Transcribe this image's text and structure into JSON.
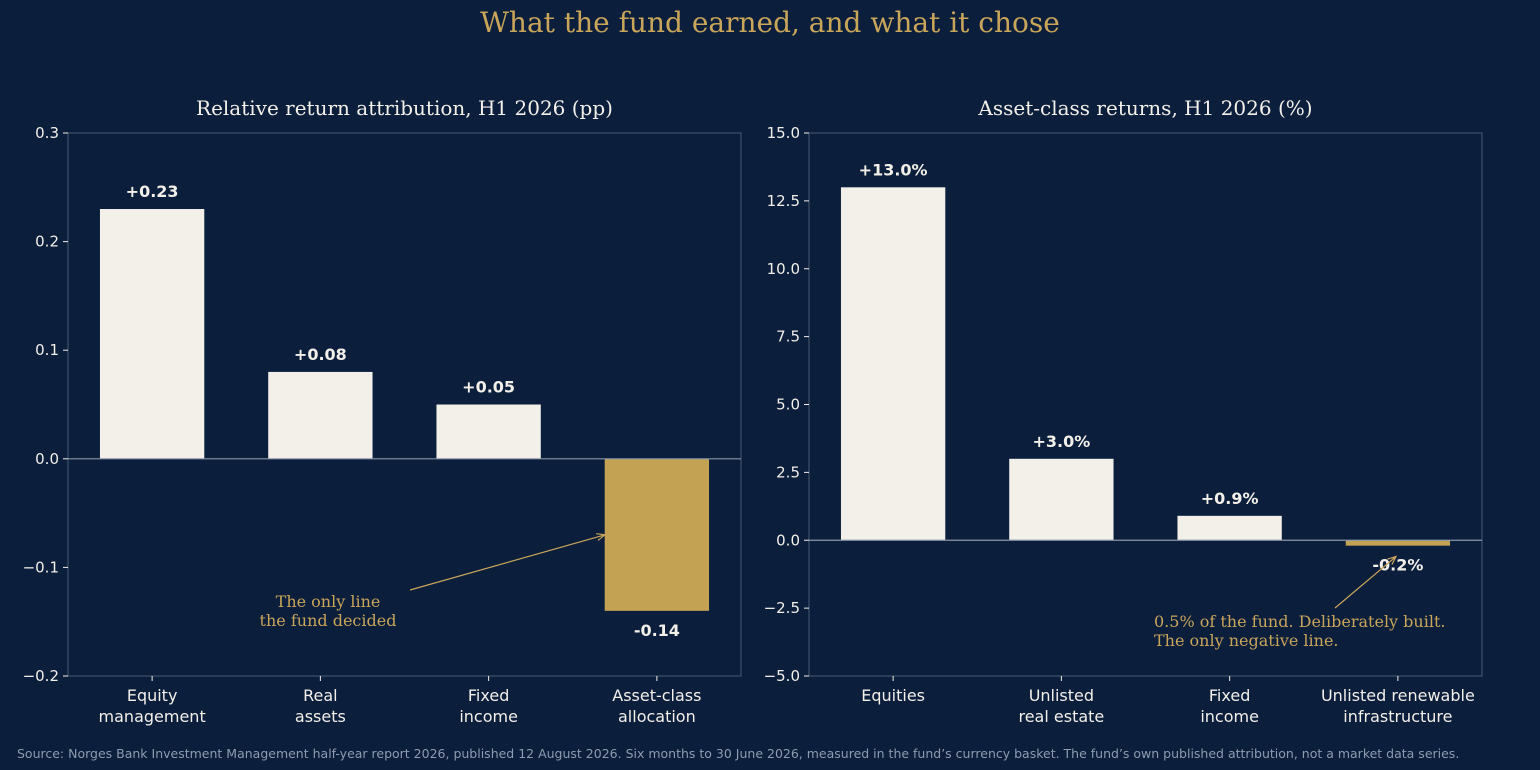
{
  "page": {
    "title": "What the fund earned, and what it chose",
    "source": "Source: Norges Bank Investment Management half-year report 2026, published 12 August 2026. Six months to 30 June 2026, measured in the fund’s currency basket. The fund’s own published attribution, not a market data series."
  },
  "colors": {
    "background": "#0b1e3b",
    "bar": "#f3efe9",
    "highlight": "#c4a253",
    "accent_text": "#c9a55a",
    "axis": "#4a5a75"
  },
  "chart_data": [
    {
      "type": "bar",
      "title": "Relative return attribution, H1 2026 (pp)",
      "categories": [
        [
          "Equity",
          "management"
        ],
        [
          "Real",
          "assets"
        ],
        [
          "Fixed",
          "income"
        ],
        [
          "Asset-class",
          "allocation"
        ]
      ],
      "values": [
        0.23,
        0.08,
        0.05,
        -0.14
      ],
      "data_labels": [
        "+0.23",
        "+0.08",
        "+0.05",
        "-0.14"
      ],
      "highlight_index": 3,
      "ylim": [
        -0.2,
        0.3
      ],
      "yticks": [
        -0.2,
        -0.1,
        0.0,
        0.1,
        0.2,
        0.3
      ],
      "ytick_labels": [
        "−0.2",
        "−0.1",
        "0.0",
        "0.1",
        "0.2",
        "0.3"
      ],
      "grid": false,
      "annotation": {
        "lines": [
          "The only line",
          "the fund decided"
        ],
        "target_index": 3,
        "target_value": -0.07
      }
    },
    {
      "type": "bar",
      "title": "Asset-class returns, H1 2026 (%)",
      "categories": [
        [
          "Equities"
        ],
        [
          "Unlisted",
          "real estate"
        ],
        [
          "Fixed",
          "income"
        ],
        [
          "Unlisted renewable",
          "infrastructure"
        ]
      ],
      "values": [
        13.0,
        3.0,
        0.9,
        -0.2
      ],
      "data_labels": [
        "+13.0%",
        "+3.0%",
        "+0.9%",
        "-0.2%"
      ],
      "highlight_index": 3,
      "ylim": [
        -5.0,
        15.0
      ],
      "yticks": [
        -5.0,
        -2.5,
        0.0,
        2.5,
        5.0,
        7.5,
        10.0,
        12.5,
        15.0
      ],
      "ytick_labels": [
        "−5.0",
        "−2.5",
        "0.0",
        "2.5",
        "5.0",
        "7.5",
        "10.0",
        "12.5",
        "15.0"
      ],
      "grid": false,
      "annotation": {
        "lines": [
          "0.5% of the fund. Deliberately built.",
          "The only negative line."
        ],
        "target_index": 3,
        "target_value": -0.6
      }
    }
  ]
}
